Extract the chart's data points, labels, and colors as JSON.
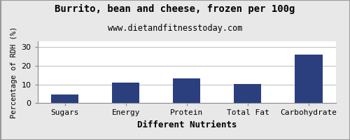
{
  "title": "Burrito, bean and cheese, frozen per 100g",
  "subtitle": "www.dietandfitnesstoday.com",
  "xlabel": "Different Nutrients",
  "ylabel": "Percentage of RDH (%)",
  "categories": [
    "Sugars",
    "Energy",
    "Protein",
    "Total Fat",
    "Carbohydrate"
  ],
  "values": [
    4.5,
    11.0,
    13.3,
    10.2,
    26.0
  ],
  "bar_color": "#2b3f7e",
  "ylim": [
    0,
    33
  ],
  "yticks": [
    0,
    10,
    20,
    30
  ],
  "background_color": "#e8e8e8",
  "plot_bg_color": "#ffffff",
  "title_fontsize": 10,
  "subtitle_fontsize": 8.5,
  "xlabel_fontsize": 9,
  "ylabel_fontsize": 7.5,
  "tick_fontsize": 8,
  "bar_width": 0.45
}
